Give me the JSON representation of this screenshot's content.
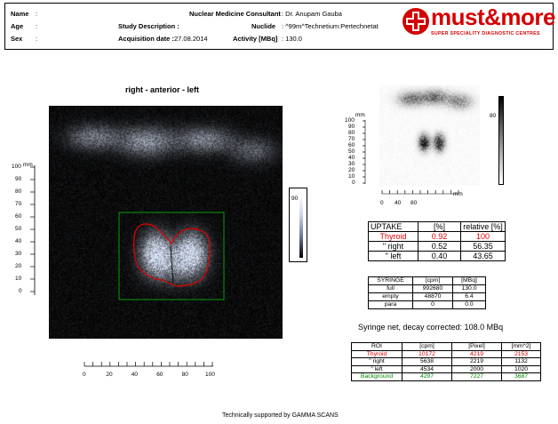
{
  "header": {
    "name_label": "Name",
    "name_value": ":",
    "age_label": "Age",
    "age_value": ":",
    "sex_label": "Sex",
    "sex_value": ":",
    "consultant_label": "Nuclear Medicine Consultant",
    "consultant_value": ": Dr. Anupam Gauba",
    "study_label": "Study Description :",
    "nuclide_label": "Nuclide",
    "nuclide_value": ": ^99m^Technetium:Pertechnetat",
    "acq_label": "Acquisition date :",
    "acq_value": "27.08.2014",
    "activity_label": "Activity [MBq]",
    "activity_value": ": 130.0"
  },
  "logo": {
    "text": "must&more",
    "tagline": "SUPER SPECIALITY DIAGNOSTIC CENTRES",
    "color": "#d40000"
  },
  "main_image": {
    "caption": "right  -  anterior  -  left",
    "y_unit": "mm",
    "y_ticks": [
      "100",
      "90",
      "80",
      "70",
      "60",
      "50",
      "40",
      "30",
      "20",
      "10",
      "0"
    ],
    "x_ticks": [
      "0",
      "20",
      "40",
      "60",
      "80",
      "100"
    ],
    "colorbar_max": "90"
  },
  "small_image": {
    "y_unit": "mm",
    "y_ticks": [
      "100",
      "90",
      "80",
      "70",
      "60",
      "50",
      "40",
      "30",
      "20",
      "10",
      "0"
    ],
    "x_ticks": [
      "0",
      "40",
      "80"
    ],
    "x_unit": "mm",
    "colorbar_max": "80"
  },
  "uptake_table": {
    "headers": [
      "UPTAKE",
      "[%]",
      "relative [%]"
    ],
    "rows": [
      {
        "label": "Thyroid",
        "pct": "0.92",
        "rel": "100",
        "color": "#e10000"
      },
      {
        "label": "\"  right",
        "pct": "0.52",
        "rel": "56.35",
        "color": "#000000"
      },
      {
        "label": "\"  left",
        "pct": "0.40",
        "rel": "43.65",
        "color": "#000000"
      }
    ]
  },
  "syringe_table": {
    "headers": [
      "SYRINGE",
      "[cpm]",
      "[MBq]"
    ],
    "rows": [
      {
        "label": "full",
        "cpm": "992680",
        "mbq": "130.0"
      },
      {
        "label": "empty",
        "cpm": "48870",
        "mbq": "6.4"
      },
      {
        "label": "para",
        "cpm": "0",
        "mbq": "0.0"
      }
    ]
  },
  "syringe_net": "Syringe net, decay corrected:  108.0 MBq",
  "roi_table": {
    "headers": [
      "ROI",
      "[cpm]",
      "[Pixel]",
      "[mm^2]"
    ],
    "rows": [
      {
        "label": "Thyroid",
        "cpm": "10172",
        "pixel": "4219",
        "mm2": "2153",
        "color": "#e10000"
      },
      {
        "label": "\"  right",
        "cpm": "5638",
        "pixel": "2219",
        "mm2": "1132",
        "color": "#000000"
      },
      {
        "label": "\"  left",
        "cpm": "4534",
        "pixel": "2000",
        "mm2": "1020",
        "color": "#000000"
      },
      {
        "label": "Background",
        "cpm": "4297",
        "pixel": "7227",
        "mm2": "3687",
        "color": "#008a00"
      }
    ]
  },
  "footer": "Technically supported by GAMMA SCANS"
}
